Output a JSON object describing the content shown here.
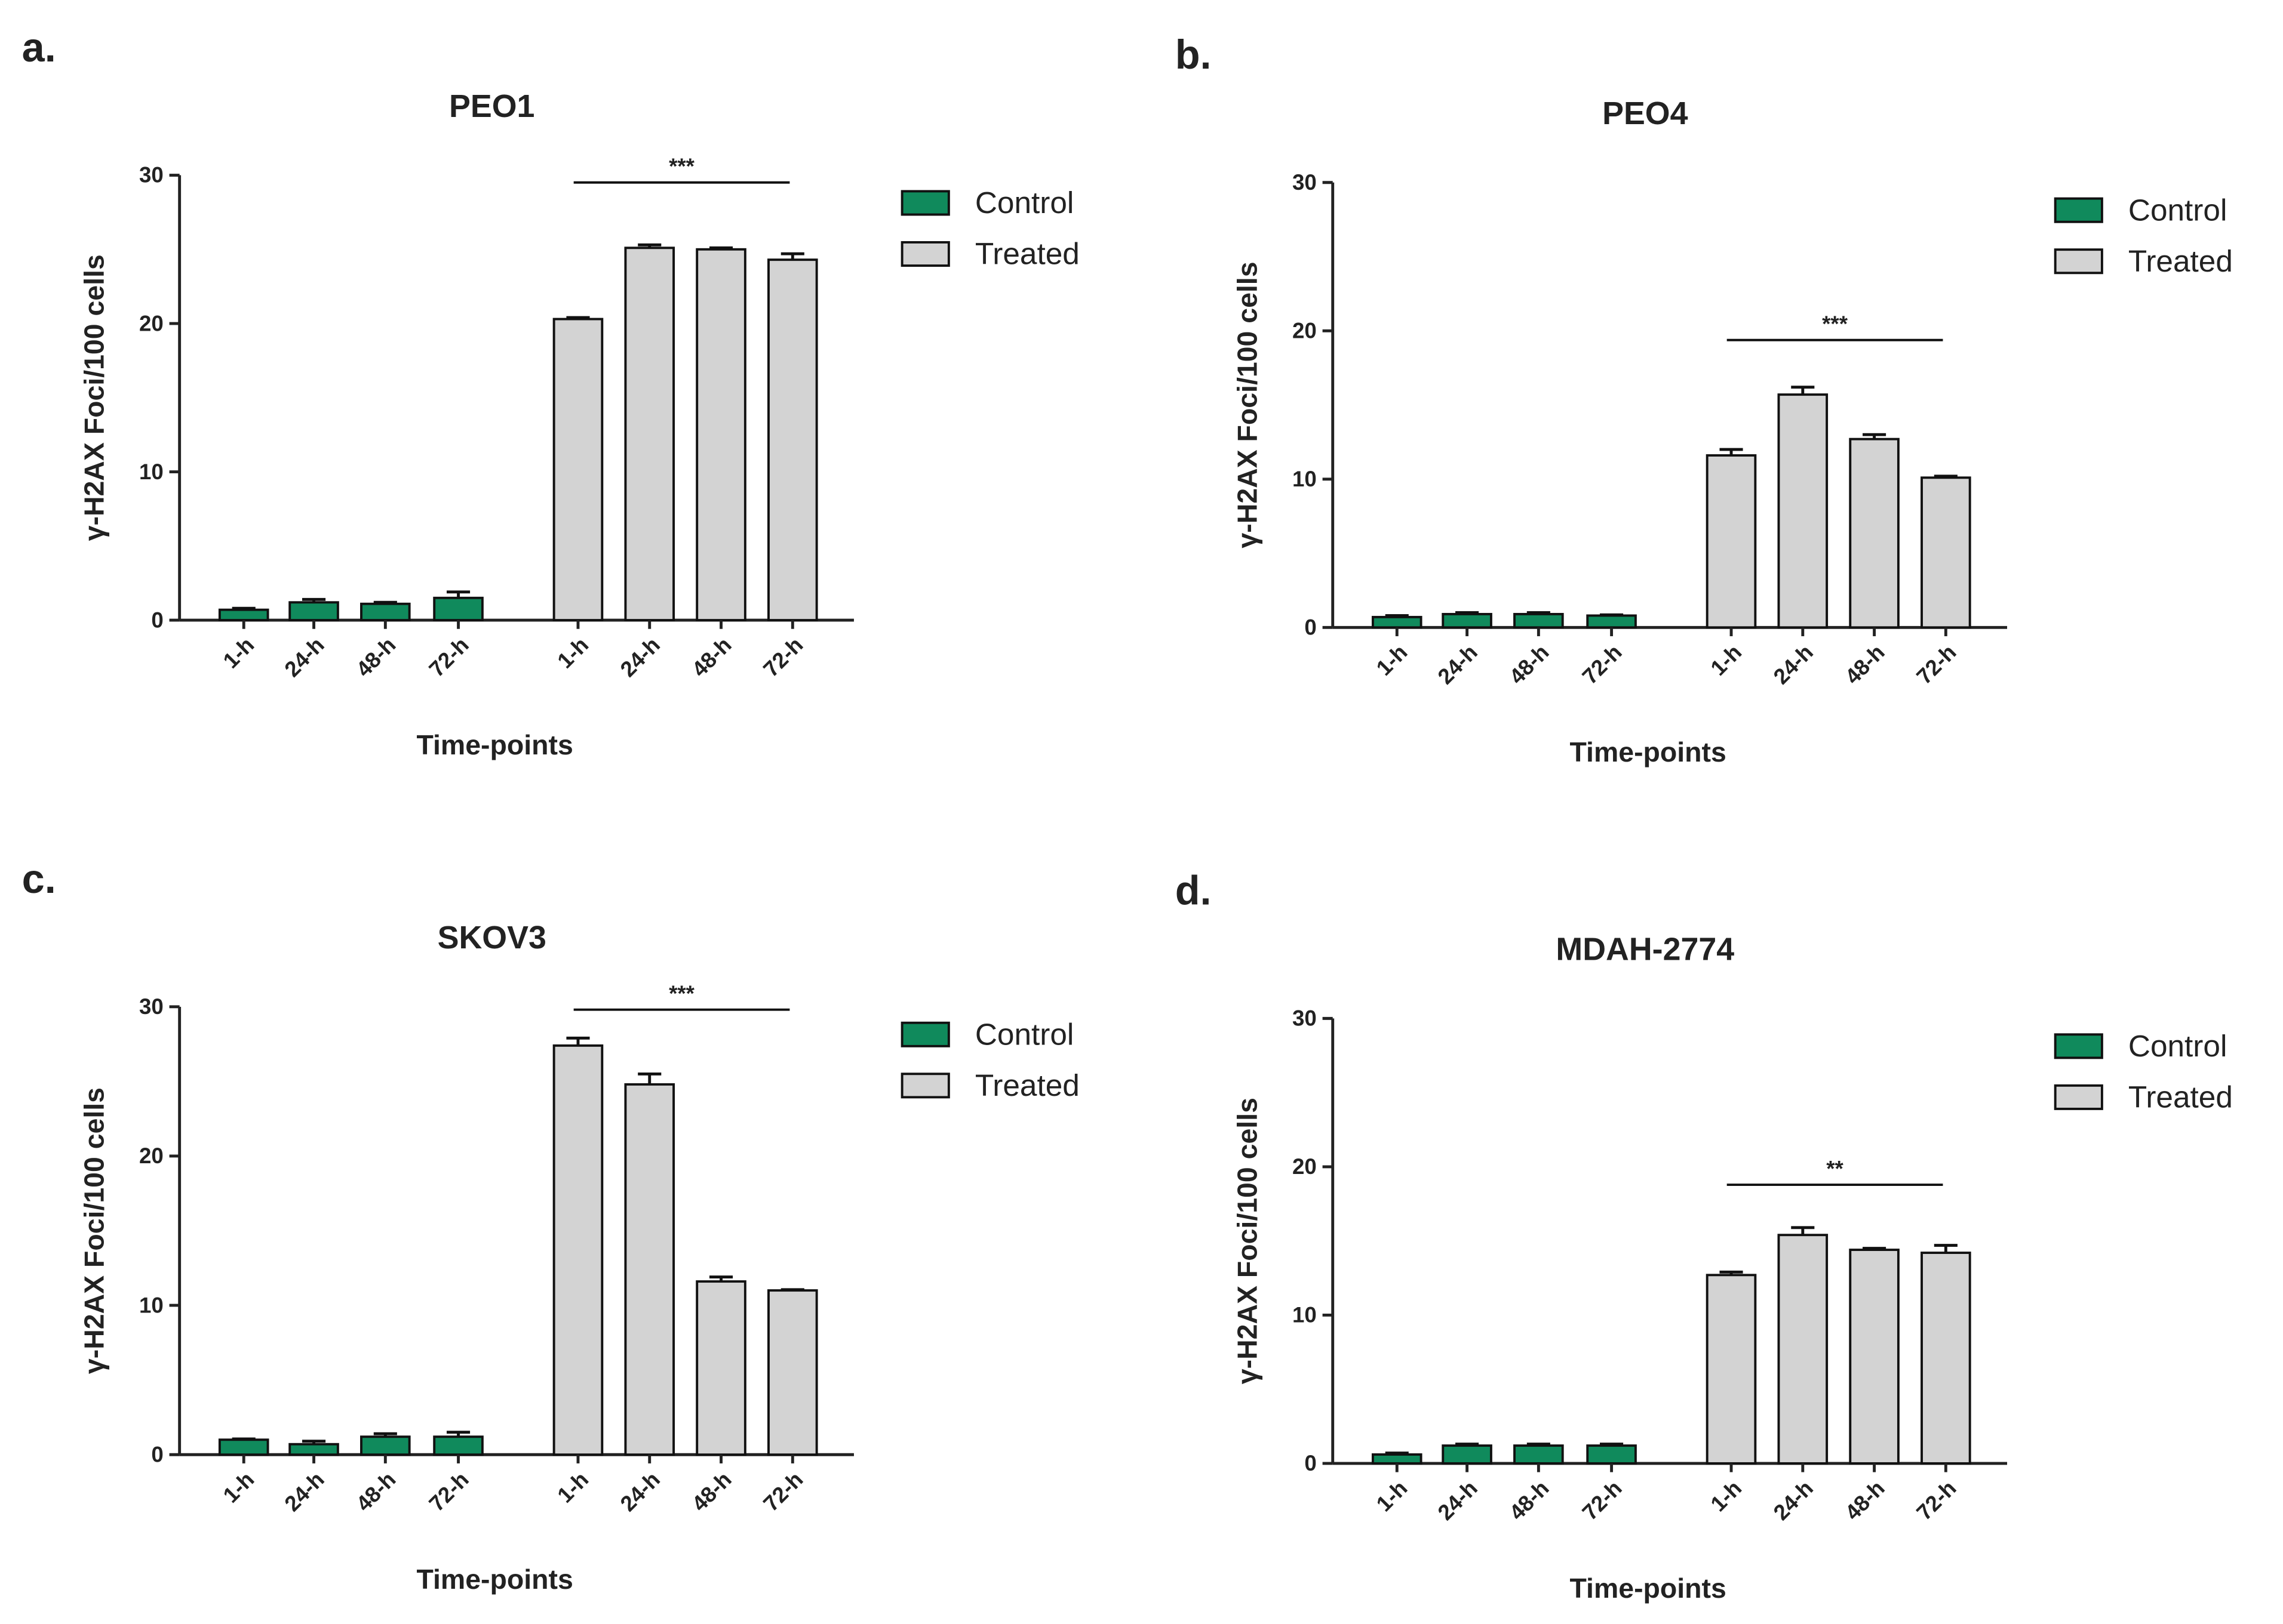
{
  "chart_data": [
    {
      "type": "bar",
      "panel": "a.",
      "title": "PEO1",
      "ylabel": "γ-H2AX Foci/100 cells",
      "xlabel": "Time-points",
      "categories": [
        "1-h",
        "24-h",
        "48-h",
        "72-h"
      ],
      "series": [
        {
          "name": "Control",
          "color": "#108a5c",
          "values": [
            0.7,
            1.2,
            1.1,
            1.5
          ],
          "errors": [
            0.1,
            0.2,
            0.1,
            0.4
          ]
        },
        {
          "name": "Treated",
          "color": "#d3d3d3",
          "values": [
            20.3,
            25.1,
            25.0,
            24.3
          ],
          "errors": [
            0.1,
            0.2,
            0.1,
            0.4
          ]
        }
      ],
      "annotation": "***",
      "ylim": [
        0,
        30
      ],
      "yticks": [
        0,
        10,
        20,
        30
      ]
    },
    {
      "type": "bar",
      "panel": "b.",
      "title": "PEO4",
      "ylabel": "γ-H2AX Foci/100 cells",
      "xlabel": "Time-points",
      "categories": [
        "1-h",
        "24-h",
        "48-h",
        "72-h"
      ],
      "series": [
        {
          "name": "Control",
          "color": "#108a5c",
          "values": [
            0.7,
            0.9,
            0.9,
            0.8
          ],
          "errors": [
            0.1,
            0.1,
            0.1,
            0.05
          ]
        },
        {
          "name": "Treated",
          "color": "#d3d3d3",
          "values": [
            11.6,
            15.7,
            12.7,
            10.1
          ],
          "errors": [
            0.4,
            0.5,
            0.3,
            0.1
          ]
        }
      ],
      "annotation": "***",
      "ylim": [
        0,
        30
      ],
      "yticks": [
        0,
        10,
        20,
        30
      ]
    },
    {
      "type": "bar",
      "panel": "c.",
      "title": "SKOV3",
      "ylabel": "γ-H2AX Foci/100 cells",
      "xlabel": "Time-points",
      "categories": [
        "1-h",
        "24-h",
        "48-h",
        "72-h"
      ],
      "series": [
        {
          "name": "Control",
          "color": "#108a5c",
          "values": [
            1.0,
            0.7,
            1.2,
            1.2
          ],
          "errors": [
            0.05,
            0.2,
            0.2,
            0.3
          ]
        },
        {
          "name": "Treated",
          "color": "#d3d3d3",
          "values": [
            27.4,
            24.8,
            11.6,
            11.0
          ],
          "errors": [
            0.5,
            0.7,
            0.3,
            0.05
          ]
        }
      ],
      "annotation": "***",
      "ylim": [
        0,
        30
      ],
      "yticks": [
        0,
        10,
        20,
        30
      ]
    },
    {
      "type": "bar",
      "panel": "d.",
      "title": "MDAH-2774",
      "ylabel": "γ-H2AX Foci/100 cells",
      "xlabel": "Time-points",
      "categories": [
        "1-h",
        "24-h",
        "48-h",
        "72-h"
      ],
      "series": [
        {
          "name": "Control",
          "color": "#108a5c",
          "values": [
            0.6,
            1.2,
            1.2,
            1.2
          ],
          "errors": [
            0.1,
            0.1,
            0.1,
            0.1
          ]
        },
        {
          "name": "Treated",
          "color": "#d3d3d3",
          "values": [
            12.7,
            15.4,
            14.4,
            14.2
          ],
          "errors": [
            0.2,
            0.5,
            0.1,
            0.5
          ]
        }
      ],
      "annotation": "**",
      "ylim": [
        0,
        30
      ],
      "yticks": [
        0,
        10,
        20,
        30
      ]
    }
  ]
}
